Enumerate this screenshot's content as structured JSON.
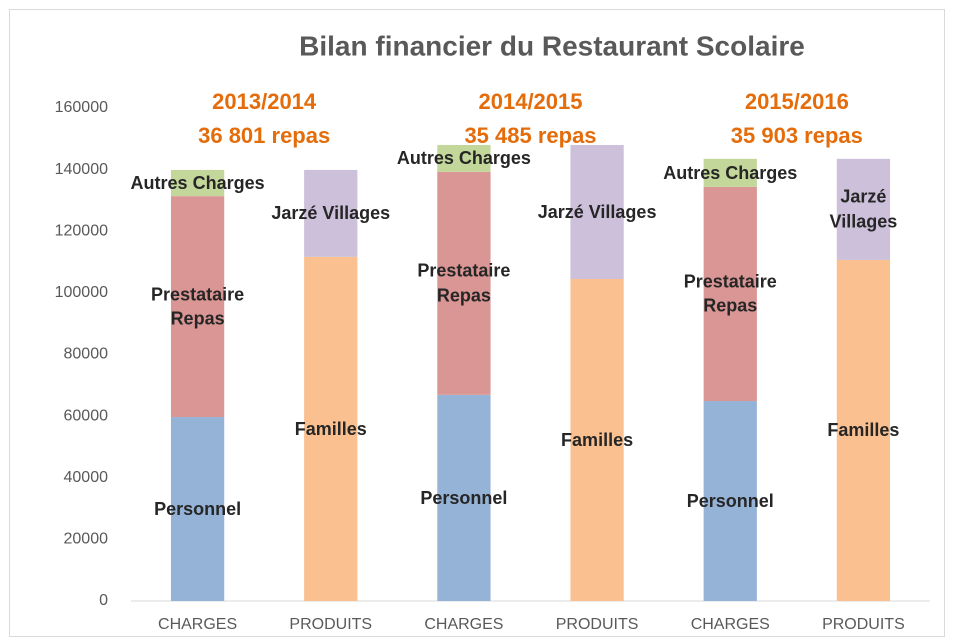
{
  "chart_data": {
    "type": "stacked_bar",
    "title": "Bilan financier du Restaurant Scolaire",
    "categories": [
      "CHARGES",
      "PRODUITS",
      "CHARGES",
      "PRODUITS",
      "CHARGES",
      "PRODUITS"
    ],
    "annotations": [
      {
        "period": "2013/2014",
        "meals": "36 801 repas"
      },
      {
        "period": "2014/2015",
        "meals": "35 485 repas"
      },
      {
        "period": "2015/2016",
        "meals": "35 903 repas"
      }
    ],
    "series": [
      {
        "name": "Personnel",
        "color": "#95b3d7",
        "values": [
          59700,
          null,
          66900,
          null,
          64900,
          null
        ]
      },
      {
        "name": "Prestataire Repas",
        "color": "#da9694",
        "values": [
          71700,
          null,
          72400,
          null,
          69500,
          null
        ]
      },
      {
        "name": "Autres Charges",
        "color": "#c4d79b",
        "values": [
          8500,
          null,
          8700,
          null,
          9100,
          null
        ]
      },
      {
        "name": "Familles",
        "color": "#fac090",
        "values": [
          null,
          111700,
          null,
          104500,
          null,
          110700
        ]
      },
      {
        "name": "Jarzé Villages",
        "color": "#ccc0da",
        "values": [
          null,
          28200,
          null,
          43500,
          null,
          32800
        ]
      }
    ],
    "ylim": [
      0,
      160000
    ],
    "yticks": [
      0,
      20000,
      40000,
      60000,
      80000,
      100000,
      120000,
      140000,
      160000
    ],
    "grid": false
  }
}
